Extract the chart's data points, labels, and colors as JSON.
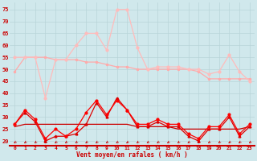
{
  "xlabel": "Vent moyen/en rafales ( km/h )",
  "background_color": "#d0e8ec",
  "grid_color": "#b8d4d8",
  "x_labels": [
    "0",
    "1",
    "2",
    "3",
    "4",
    "5",
    "6",
    "7",
    "8",
    "9",
    "10",
    "11",
    "12",
    "13",
    "14",
    "15",
    "16",
    "17",
    "18",
    "19",
    "20",
    "21",
    "22",
    "23"
  ],
  "ylim": [
    18,
    78
  ],
  "yticks": [
    20,
    25,
    30,
    35,
    40,
    45,
    50,
    55,
    60,
    65,
    70,
    75
  ],
  "line_smooth_color": "#ffaaaa",
  "line_spiky_color": "#ffbbbb",
  "line_red1_color": "#ff0000",
  "line_red2_color": "#cc0000",
  "line_red3_color": "#dd0000",
  "smooth_data": [
    49,
    55,
    55,
    55,
    54,
    54,
    54,
    53,
    53,
    52,
    51,
    51,
    50,
    50,
    50,
    50,
    50,
    50,
    49,
    46,
    46,
    46,
    46,
    46
  ],
  "spiky_data": [
    55,
    55,
    55,
    38,
    54,
    54,
    60,
    65,
    65,
    58,
    75,
    75,
    59,
    50,
    51,
    51,
    51,
    50,
    50,
    48,
    49,
    56,
    49,
    45
  ],
  "red_spiky_data": [
    27,
    33,
    29,
    21,
    25,
    22,
    25,
    32,
    37,
    31,
    37,
    33,
    27,
    27,
    29,
    27,
    27,
    23,
    21,
    26,
    26,
    31,
    23,
    27
  ],
  "red_flat_data": [
    26,
    27,
    27,
    27,
    27,
    27,
    27,
    27,
    27,
    27,
    27,
    27,
    26,
    26,
    26,
    26,
    25,
    25,
    25,
    25,
    25,
    25,
    25,
    26
  ],
  "red_tri_data": [
    27,
    32,
    28,
    20,
    22,
    22,
    23,
    27,
    36,
    30,
    38,
    33,
    26,
    26,
    28,
    26,
    26,
    22,
    20,
    25,
    25,
    30,
    22,
    26
  ],
  "arrow_color": "#cc0000",
  "tick_color": "#cc0000",
  "spine_color": "#cc0000"
}
